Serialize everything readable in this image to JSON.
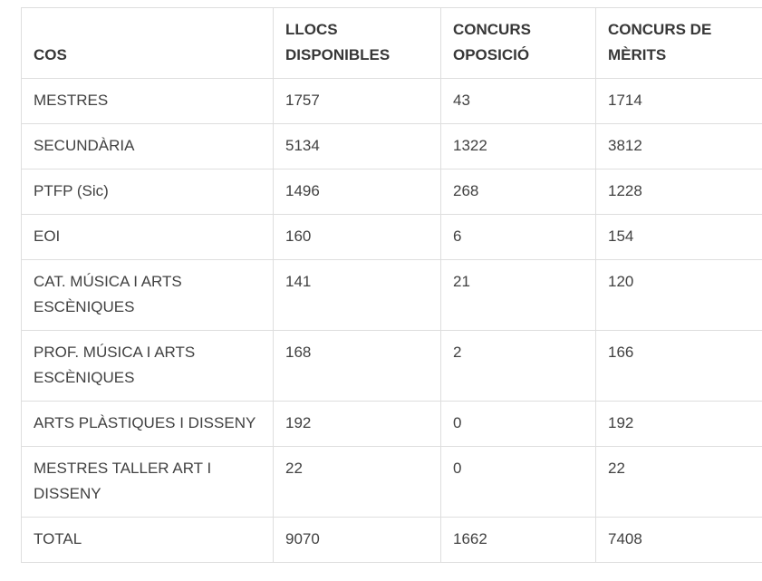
{
  "colors": {
    "page-bg": "#ffffff",
    "border": "#dedede",
    "header-text": "#373737",
    "body-text": "#414141"
  },
  "table": {
    "headers": [
      "COS",
      "LLOCS DISPONIBLES",
      "CONCURS OPOSICIÓ",
      "CONCURS DE MÈRITS"
    ],
    "rows": [
      [
        "MESTRES",
        "1757",
        "43",
        "1714"
      ],
      [
        "SECUNDÀRIA",
        "5134",
        "1322",
        "3812"
      ],
      [
        "PTFP (Sic)",
        "1496",
        "268",
        "1228"
      ],
      [
        "EOI",
        "160",
        "6",
        "154"
      ],
      [
        "CAT. MÚSICA I ARTS ESCÈNIQUES",
        "141",
        "21",
        "120"
      ],
      [
        "PROF. MÚSICA I ARTS ESCÈNIQUES",
        "168",
        "2",
        "166"
      ],
      [
        "ARTS PLÀSTIQUES I DISSENY",
        "192",
        "0",
        "192"
      ],
      [
        "MESTRES TALLER ART I DISSENY",
        "22",
        "0",
        "22"
      ],
      [
        "TOTAL",
        "9070",
        "1662",
        "7408"
      ]
    ]
  }
}
